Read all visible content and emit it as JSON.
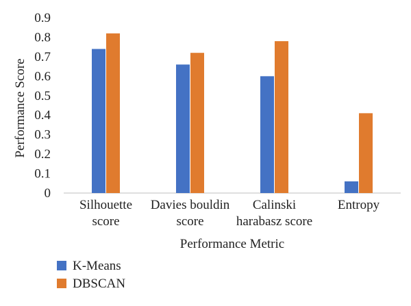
{
  "chart_data": {
    "type": "bar",
    "categories": [
      [
        "Silhouette",
        "score"
      ],
      [
        "Davies bouldin",
        "score"
      ],
      [
        "Calinski",
        "harabasz score"
      ],
      [
        "Entropy"
      ]
    ],
    "series": [
      {
        "name": "K-Means",
        "color": "#4472C4",
        "values": [
          0.74,
          0.66,
          0.6,
          0.06
        ]
      },
      {
        "name": "DBSCAN",
        "color": "#E07B2E",
        "values": [
          0.82,
          0.72,
          0.78,
          0.41
        ]
      }
    ],
    "xlabel": "Performance Metric",
    "ylabel": "Performance Score",
    "ylim": [
      0,
      0.9
    ],
    "yticks": [
      "0",
      "0.1",
      "0.2",
      "0.3",
      "0.4",
      "0.5",
      "0.6",
      "0.7",
      "0.8",
      "0.9"
    ],
    "grid": false,
    "legend_position": "bottom-left"
  }
}
